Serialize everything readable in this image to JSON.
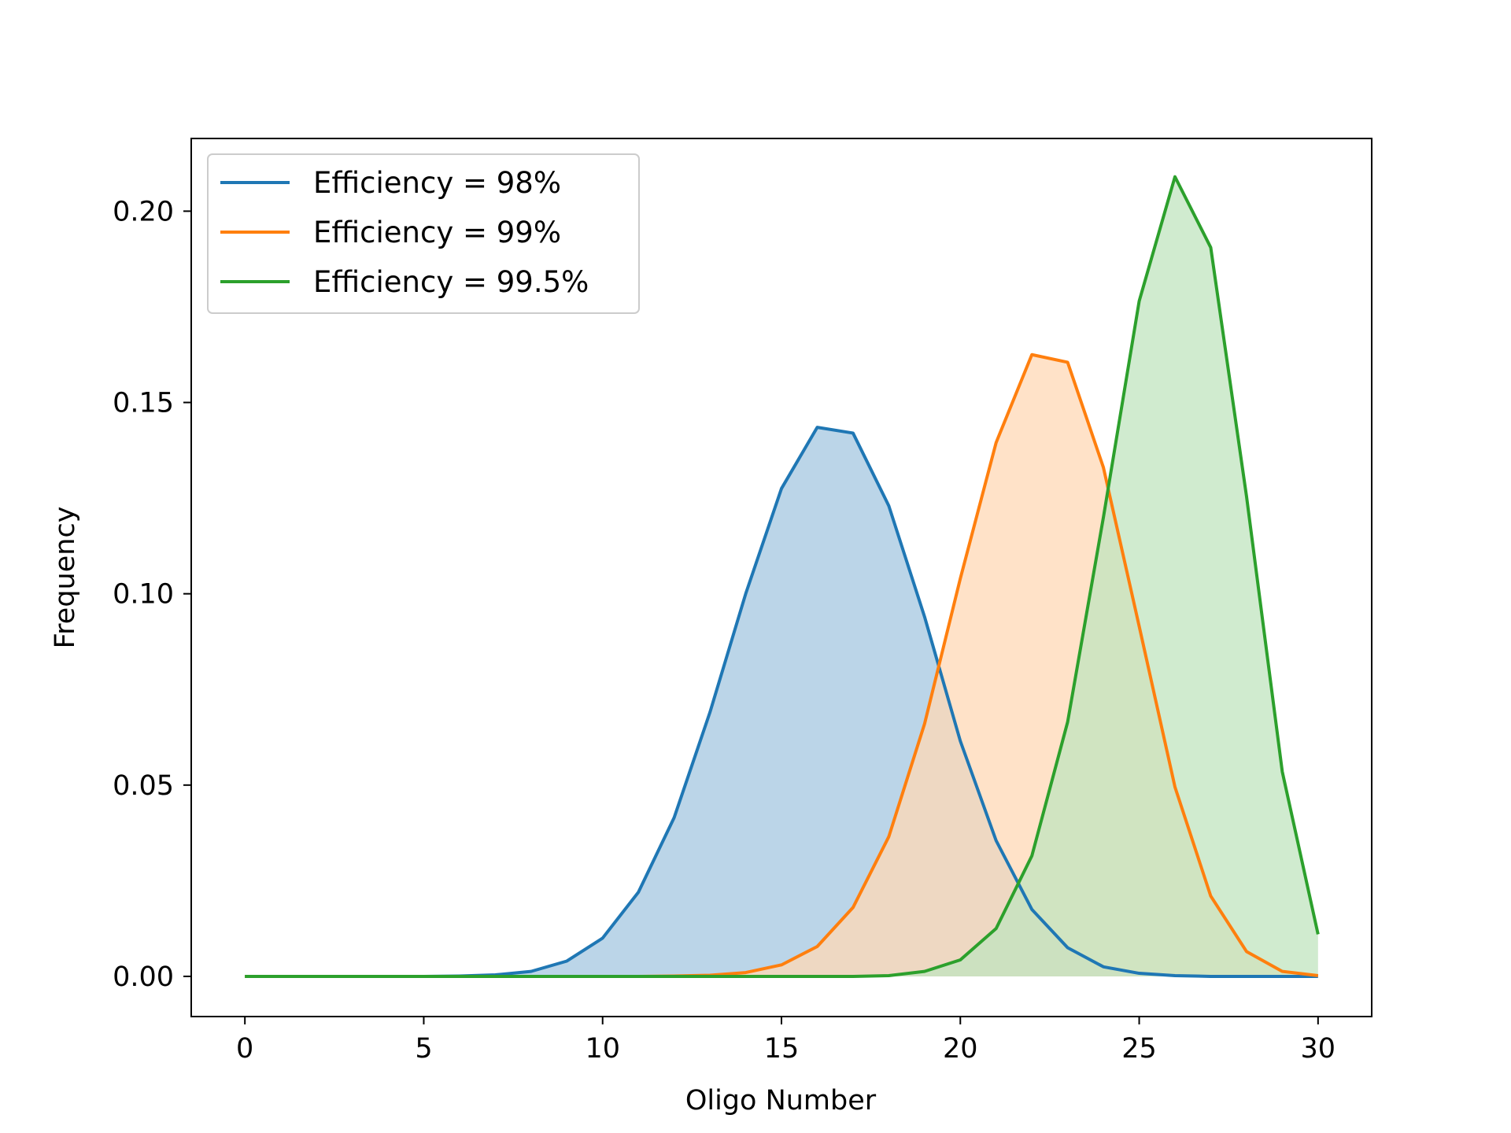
{
  "chart_data": {
    "type": "area",
    "xlabel": "Oligo Number",
    "ylabel": "Frequency",
    "xlim": [
      -1.5,
      31.5
    ],
    "ylim": [
      -0.0105,
      0.219
    ],
    "xticks": [
      0,
      5,
      10,
      15,
      20,
      25,
      30
    ],
    "yticks": [
      0.0,
      0.05,
      0.1,
      0.15,
      0.2
    ],
    "ytick_labels": [
      "0.00",
      "0.05",
      "0.10",
      "0.15",
      "0.20"
    ],
    "grid": false,
    "legend_position": "upper-left",
    "x": [
      0,
      1,
      2,
      3,
      4,
      5,
      6,
      7,
      8,
      9,
      10,
      11,
      12,
      13,
      14,
      15,
      16,
      17,
      18,
      19,
      20,
      21,
      22,
      23,
      24,
      25,
      26,
      27,
      28,
      29,
      30
    ],
    "series": [
      {
        "name": "Efficiency = 98%",
        "color": "#1f77b4",
        "fill": "#bbd5e8",
        "values": [
          0,
          0,
          0,
          0,
          0,
          0,
          0.0001,
          0.0004,
          0.0013,
          0.004,
          0.01,
          0.022,
          0.0415,
          0.069,
          0.1,
          0.1275,
          0.1435,
          0.142,
          0.123,
          0.094,
          0.0615,
          0.0355,
          0.0175,
          0.0075,
          0.0025,
          0.0008,
          0.0002,
          0,
          0,
          0,
          0
        ]
      },
      {
        "name": "Efficiency = 99%",
        "color": "#ff7f0e",
        "fill": "#ffd8b5",
        "values": [
          0,
          0,
          0,
          0,
          0,
          0,
          0,
          0,
          0,
          0,
          0,
          0,
          0.0001,
          0.0003,
          0.001,
          0.003,
          0.0078,
          0.018,
          0.0365,
          0.066,
          0.104,
          0.1395,
          0.1625,
          0.1605,
          0.133,
          0.0915,
          0.0495,
          0.021,
          0.0065,
          0.0013,
          0.0002
        ]
      },
      {
        "name": "Efficiency = 99.5%",
        "color": "#2ca02c",
        "fill": "#c0e4bf",
        "values": [
          0,
          0,
          0,
          0,
          0,
          0,
          0,
          0,
          0,
          0,
          0,
          0,
          0,
          0,
          0,
          0,
          0,
          0,
          0.0002,
          0.0013,
          0.0043,
          0.0125,
          0.0315,
          0.0665,
          0.12,
          0.1765,
          0.209,
          0.1905,
          0.1255,
          0.0535,
          0.011
        ]
      }
    ]
  }
}
